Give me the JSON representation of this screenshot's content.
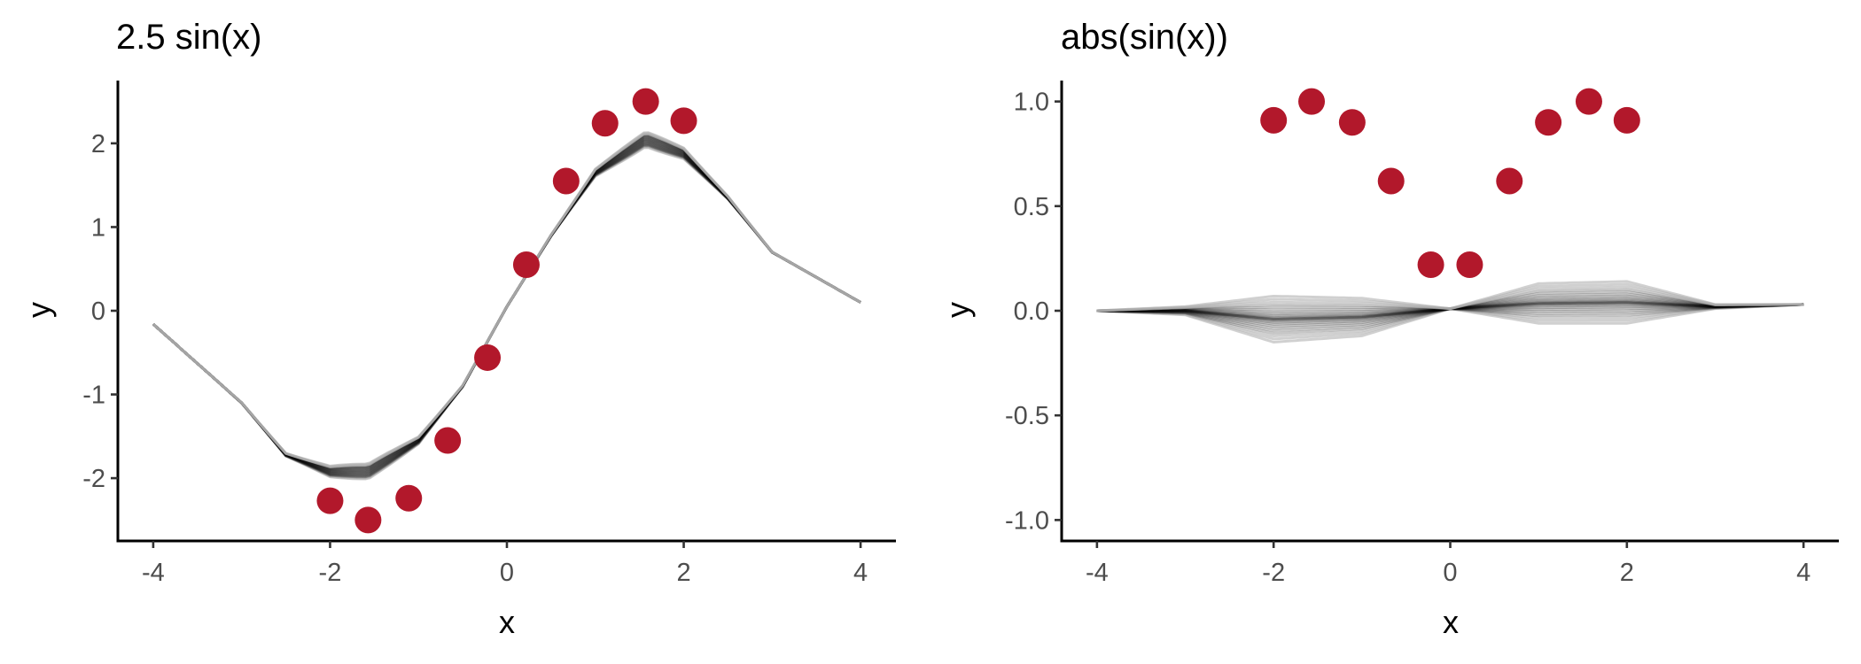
{
  "chart_data": [
    {
      "type": "line",
      "title": "2.5 sin(x)",
      "xlabel": "x",
      "ylabel": "y",
      "xlim": [
        -4.4,
        4.4
      ],
      "ylim": [
        -2.75,
        2.75
      ],
      "x_ticks": [
        -4,
        -2,
        0,
        2,
        4
      ],
      "x_tick_labels": [
        "-4",
        "-2",
        "0",
        "2",
        "4"
      ],
      "y_ticks": [
        -2,
        -1,
        0,
        1,
        2
      ],
      "y_tick_labels": [
        "-2",
        "-1",
        "0",
        "1",
        "2"
      ],
      "grid": false,
      "points": {
        "color": "#b2182b",
        "x": [
          -2.0,
          -1.57,
          -1.11,
          -0.67,
          -0.22,
          0.22,
          0.67,
          1.11,
          1.57,
          2.0
        ],
        "y": [
          -2.27,
          -2.5,
          -2.24,
          -1.55,
          -0.56,
          0.55,
          1.55,
          2.24,
          2.5,
          2.27
        ]
      },
      "curves": {
        "color": "#000000",
        "description_x": [
          -4,
          -3,
          -2.5,
          -2,
          -1.57,
          -1,
          -0.5,
          0,
          0.5,
          1,
          1.57,
          2,
          2.5,
          3,
          4
        ],
        "mean_y": [
          -0.16,
          -1.1,
          -1.72,
          -1.92,
          -1.92,
          -1.55,
          -0.9,
          0.05,
          0.9,
          1.65,
          2.05,
          1.88,
          1.35,
          0.7,
          0.1
        ]
      }
    },
    {
      "type": "line",
      "title": "abs(sin(x))",
      "xlabel": "x",
      "ylabel": "y",
      "xlim": [
        -4.4,
        4.4
      ],
      "ylim": [
        -1.1,
        1.1
      ],
      "x_ticks": [
        -4,
        -2,
        0,
        2,
        4
      ],
      "x_tick_labels": [
        "-4",
        "-2",
        "0",
        "2",
        "4"
      ],
      "y_ticks": [
        -1.0,
        -0.5,
        0.0,
        0.5,
        1.0
      ],
      "y_tick_labels": [
        "-1.0",
        "-0.5",
        "0.0",
        "0.5",
        "1.0"
      ],
      "grid": false,
      "points": {
        "color": "#b2182b",
        "x": [
          -2.0,
          -1.57,
          -1.11,
          -0.67,
          -0.22,
          0.22,
          0.67,
          1.11,
          1.57,
          2.0
        ],
        "y": [
          0.91,
          1.0,
          0.9,
          0.62,
          0.22,
          0.22,
          0.62,
          0.9,
          1.0,
          0.91
        ]
      },
      "curves": {
        "color": "#000000",
        "description_x": [
          -4,
          -3,
          -2,
          -1,
          0,
          1,
          2,
          3,
          4
        ],
        "envelope_low": [
          0.0,
          -0.02,
          -0.15,
          -0.12,
          0.01,
          -0.06,
          -0.06,
          0.01,
          0.03
        ],
        "envelope_high": [
          0.0,
          0.02,
          0.07,
          0.06,
          0.01,
          0.13,
          0.14,
          0.03,
          0.03
        ]
      }
    }
  ]
}
